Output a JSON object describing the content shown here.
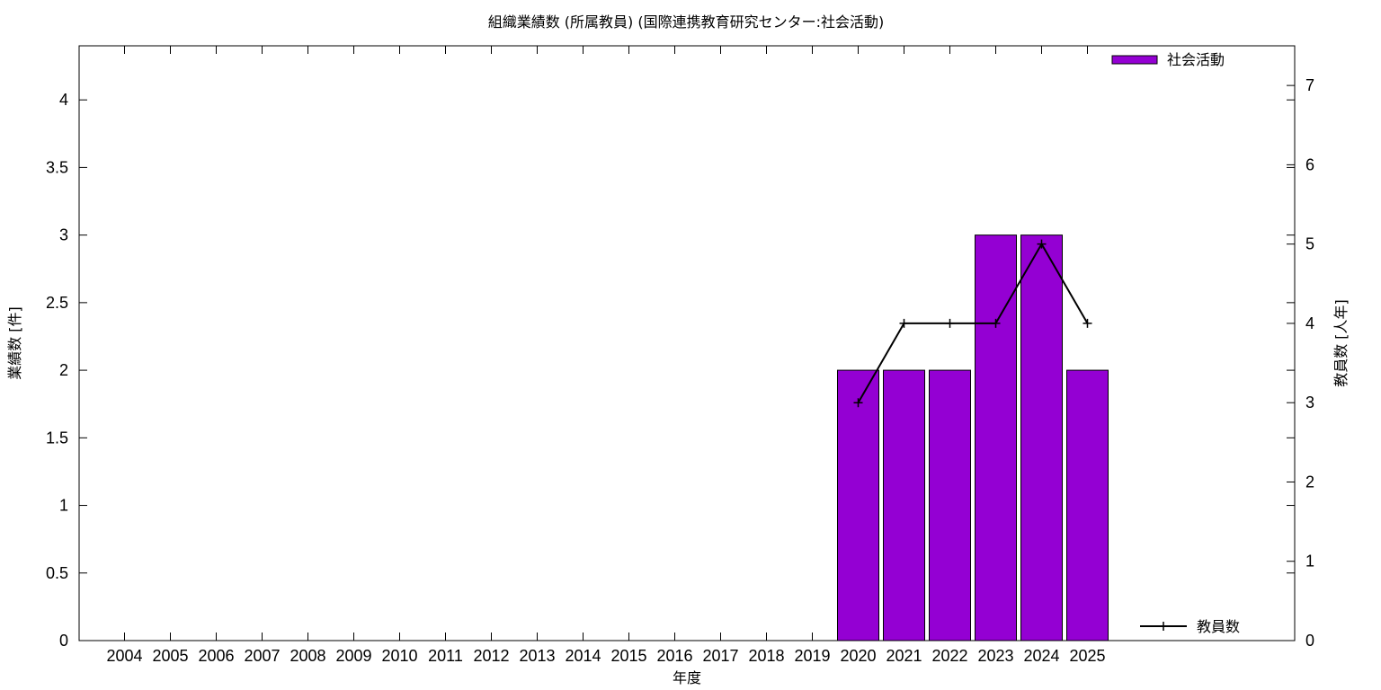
{
  "chart_data": {
    "type": "bar",
    "title": "組織業績数 (所属教員) (国際連携教育研究センター:社会活動)",
    "xlabel": "年度",
    "ylabel": "業績数 [件]",
    "y2label": "教員数 [人年]",
    "categories": [
      "2004",
      "2005",
      "2006",
      "2007",
      "2008",
      "2009",
      "2010",
      "2011",
      "2012",
      "2013",
      "2014",
      "2015",
      "2016",
      "2017",
      "2018",
      "2019",
      "2020",
      "2021",
      "2022",
      "2023",
      "2024",
      "2025"
    ],
    "series": [
      {
        "name": "社会活動",
        "kind": "bar",
        "axis": "left",
        "color": "#9400d3",
        "values": [
          0,
          0,
          0,
          0,
          0,
          0,
          0,
          0,
          0,
          0,
          0,
          0,
          0,
          0,
          0,
          0,
          2,
          2,
          2,
          3,
          3,
          2
        ]
      },
      {
        "name": "教員数",
        "kind": "line",
        "axis": "right",
        "color": "#000000",
        "values": [
          null,
          null,
          null,
          null,
          null,
          null,
          null,
          null,
          null,
          null,
          null,
          null,
          null,
          null,
          null,
          null,
          3,
          4,
          4,
          4,
          5,
          4
        ]
      }
    ],
    "ylim": [
      0,
      4.4
    ],
    "y2lim": [
      0,
      7.5
    ],
    "yticks": [
      "0",
      "0.5",
      "1",
      "1.5",
      "2",
      "2.5",
      "3",
      "3.5",
      "4"
    ],
    "y2ticks": [
      "0",
      "1",
      "2",
      "3",
      "4",
      "5",
      "6",
      "7"
    ],
    "legend": [
      {
        "label": "社会活動",
        "placement": "top-right"
      },
      {
        "label": "教員数",
        "placement": "bottom-right"
      }
    ],
    "grid": false
  }
}
